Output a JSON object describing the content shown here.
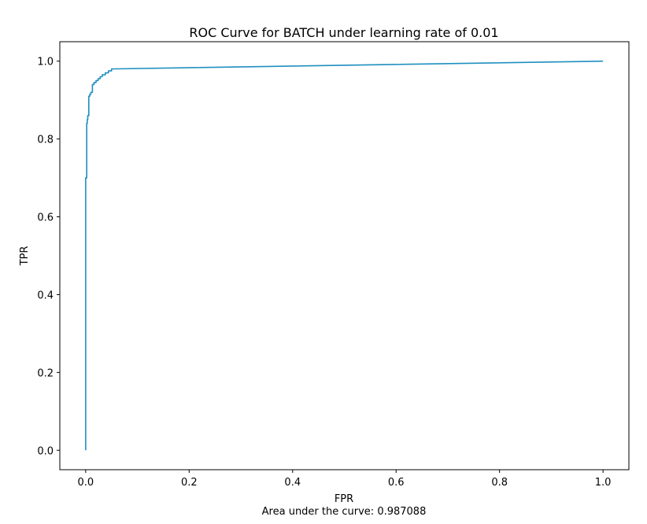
{
  "chart_data": {
    "type": "line",
    "title": "ROC Curve for BATCH under learning rate of 0.01",
    "xlabel": "FPR",
    "ylabel": "TPR",
    "caption": "Area under the curve: 0.987088",
    "xlim": [
      -0.05,
      1.05
    ],
    "ylim": [
      -0.05,
      1.05
    ],
    "xticks": [
      0.0,
      0.2,
      0.4,
      0.6,
      0.8,
      1.0
    ],
    "yticks": [
      0.0,
      0.2,
      0.4,
      0.6,
      0.8,
      1.0
    ],
    "xtick_labels": [
      "0.0",
      "0.2",
      "0.4",
      "0.6",
      "0.8",
      "1.0"
    ],
    "ytick_labels": [
      "0.0",
      "0.2",
      "0.4",
      "0.6",
      "0.8",
      "1.0"
    ],
    "grid": false,
    "legend": "none",
    "series_color": "#1f8fbf",
    "series": [
      {
        "x": [
          0.0,
          0.0,
          0.002,
          0.002,
          0.003,
          0.003,
          0.004,
          0.004,
          0.006,
          0.006,
          0.008,
          0.008,
          0.01,
          0.01,
          0.013,
          0.013,
          0.016,
          0.016,
          0.02,
          0.02,
          0.024,
          0.024,
          0.028,
          0.028,
          0.032,
          0.032,
          0.038,
          0.038,
          0.044,
          0.044,
          0.05,
          0.05,
          1.0
        ],
        "y": [
          0.0,
          0.7,
          0.7,
          0.84,
          0.84,
          0.85,
          0.85,
          0.86,
          0.86,
          0.91,
          0.91,
          0.915,
          0.915,
          0.92,
          0.92,
          0.94,
          0.94,
          0.945,
          0.945,
          0.95,
          0.95,
          0.955,
          0.955,
          0.96,
          0.96,
          0.965,
          0.965,
          0.97,
          0.97,
          0.975,
          0.975,
          0.98,
          1.0
        ]
      }
    ]
  }
}
